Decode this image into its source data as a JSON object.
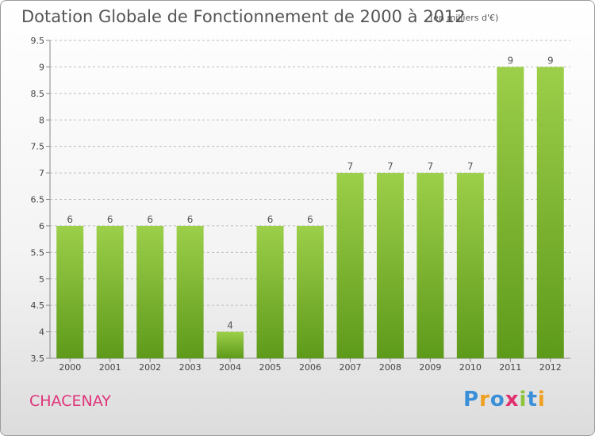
{
  "title": "Dotation Globale de Fonctionnement de 2000 à 2012",
  "unit": "(en milliers d'€)",
  "commune": "CHACENAY",
  "logo": {
    "text": "Proxiti",
    "letters": [
      {
        "ch": "P",
        "color": "#3a8fd8"
      },
      {
        "ch": "r",
        "color": "#f0a020"
      },
      {
        "ch": "o",
        "color": "#3a8fd8"
      },
      {
        "ch": "x",
        "color": "#e03070"
      },
      {
        "ch": "i",
        "color": "#8cc43a"
      },
      {
        "ch": "t",
        "color": "#3a8fd8"
      },
      {
        "ch": "i",
        "color": "#f0a020"
      }
    ]
  },
  "colors": {
    "bar_top": "#9ccf4a",
    "bar_bottom": "#5e9a1a",
    "grid": "#bdbdbd",
    "axis": "#888888"
  },
  "chart_data": {
    "type": "bar",
    "title": "Dotation Globale de Fonctionnement de 2000 à 2012",
    "categories": [
      "2000",
      "2001",
      "2002",
      "2003",
      "2004",
      "2005",
      "2006",
      "2007",
      "2008",
      "2009",
      "2010",
      "2011",
      "2012"
    ],
    "values": [
      6,
      6,
      6,
      6,
      4,
      6,
      6,
      7,
      7,
      7,
      7,
      9,
      9
    ],
    "ylim": [
      3.5,
      9.5
    ],
    "yticks": [
      "3.5",
      "4",
      "4.5",
      "5",
      "5.5",
      "6",
      "6.5",
      "7",
      "7.5",
      "8",
      "8.5",
      "9",
      "9.5"
    ],
    "grid": "horizontal-dashed",
    "xlabel": "",
    "ylabel": ""
  }
}
